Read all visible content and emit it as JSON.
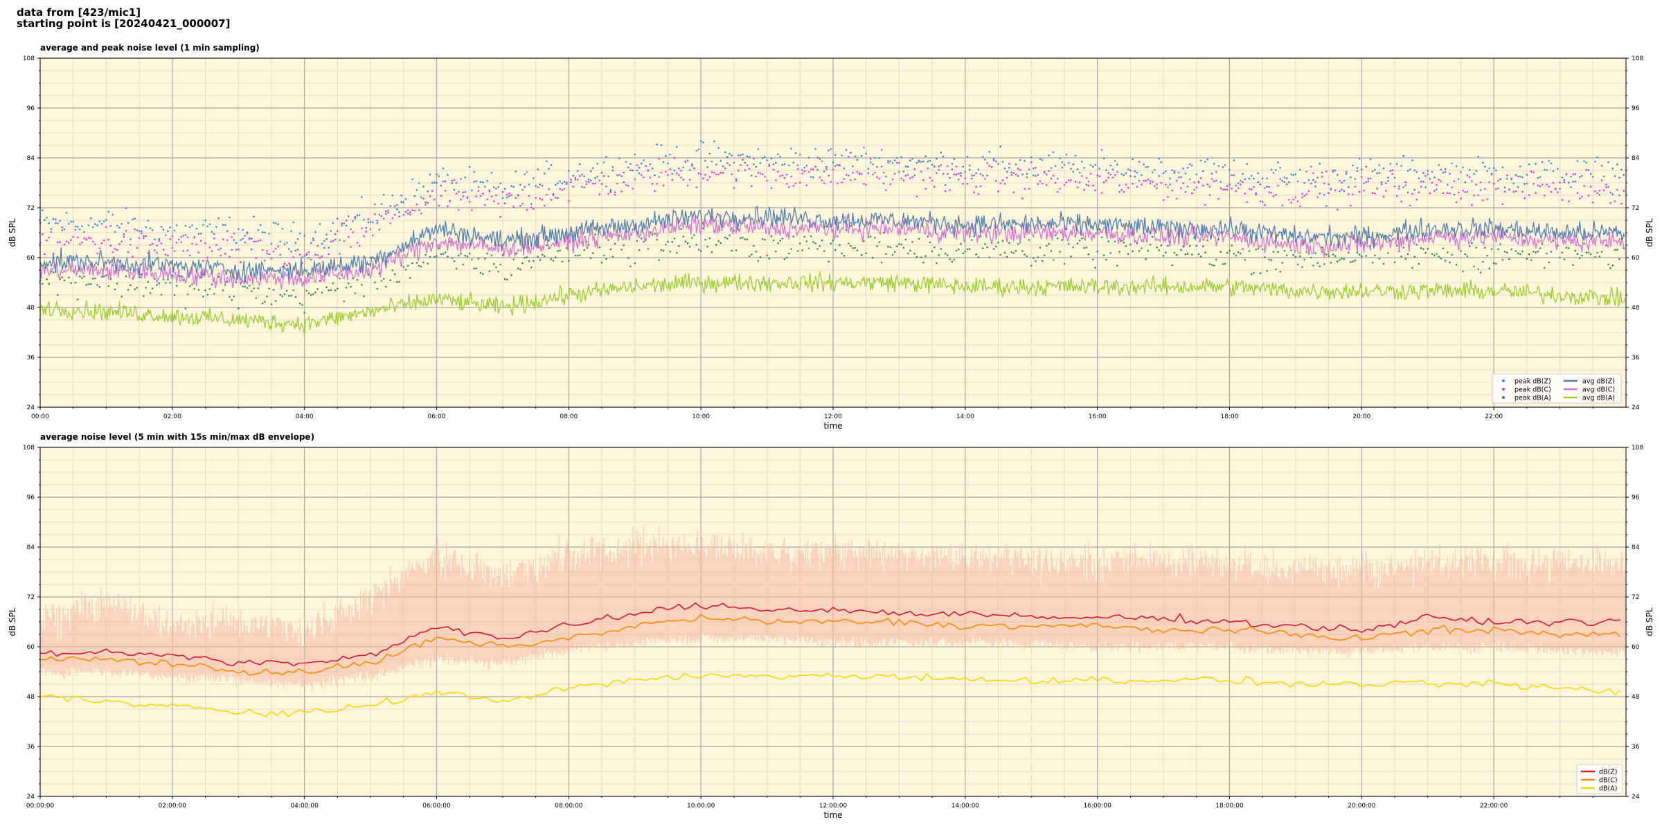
{
  "header": {
    "line1": "data from [423/mic1]",
    "line2": "starting point is [20240421_000007]"
  },
  "colors": {
    "plot_bg": "#fff7dc",
    "grid_major": "#a8a8a8",
    "grid_minor": "#e2dac8",
    "peak_z": "#2b8ccf",
    "peak_c": "#ee33dd",
    "peak_a": "#2a8a5a",
    "avg_z": "#4f7fb0",
    "avg_c": "#d773d3",
    "avg_a": "#9acd32",
    "dbz": "#dc143c",
    "dbc": "#ff8c00",
    "dba": "#ffd700",
    "envelope": "#f5b7a2"
  },
  "chart_data": [
    {
      "type": "line",
      "title": "average and peak noise level (1 min sampling)",
      "xlabel": "time",
      "ylabel": "dB SPL",
      "xlim": [
        0,
        24
      ],
      "ylim": [
        24,
        108
      ],
      "yticks": [
        24,
        36,
        48,
        60,
        72,
        84,
        96,
        108
      ],
      "xticks": [
        "00:00",
        "02:00",
        "04:00",
        "06:00",
        "08:00",
        "10:00",
        "12:00",
        "14:00",
        "16:00",
        "18:00",
        "20:00",
        "22:00"
      ],
      "grid": true,
      "legend_position": "bottom-right",
      "legend": [
        "peak dB(Z)",
        "peak dB(C)",
        "peak dB(A)",
        "avg dB(Z)",
        "avg dB(C)",
        "avg dB(A)"
      ],
      "x": [
        0,
        1,
        2,
        3,
        4,
        5,
        6,
        7,
        8,
        9,
        10,
        11,
        12,
        13,
        14,
        15,
        16,
        17,
        18,
        19,
        20,
        21,
        22,
        23,
        24
      ],
      "series": [
        {
          "name": "peak dB(Z)",
          "style": "scatter",
          "values": [
            68,
            68,
            66,
            66,
            64,
            70,
            78,
            76,
            80,
            82,
            84,
            83,
            83,
            83,
            82,
            82,
            81,
            81,
            80,
            79,
            80,
            80,
            80,
            80,
            80
          ]
        },
        {
          "name": "peak dB(C)",
          "style": "scatter",
          "values": [
            64,
            64,
            62,
            62,
            60,
            67,
            75,
            73,
            77,
            79,
            81,
            80,
            80,
            80,
            79,
            79,
            78,
            78,
            77,
            76,
            77,
            77,
            77,
            77,
            77
          ]
        },
        {
          "name": "peak dB(A)",
          "style": "scatter",
          "values": [
            55,
            55,
            53,
            52,
            51,
            55,
            60,
            58,
            62,
            63,
            64,
            63,
            63,
            63,
            62,
            62,
            62,
            62,
            61,
            60,
            61,
            61,
            61,
            61,
            61
          ]
        },
        {
          "name": "avg dB(Z)",
          "style": "line",
          "values": [
            59,
            59,
            58,
            57,
            57,
            59,
            67,
            64,
            66,
            68,
            70,
            70,
            69,
            69,
            68,
            68,
            68,
            67,
            67,
            65,
            65,
            67,
            67,
            66,
            66
          ]
        },
        {
          "name": "avg dB(C)",
          "style": "line",
          "values": [
            57,
            57,
            56,
            55,
            55,
            57,
            64,
            62,
            64,
            66,
            68,
            67,
            67,
            67,
            66,
            66,
            66,
            65,
            65,
            63,
            63,
            65,
            65,
            64,
            64
          ]
        },
        {
          "name": "avg dB(A)",
          "style": "line",
          "values": [
            48,
            47,
            46,
            45,
            44,
            47,
            50,
            48,
            51,
            53,
            54,
            54,
            54,
            54,
            53,
            53,
            53,
            53,
            53,
            52,
            52,
            52,
            52,
            51,
            50
          ]
        }
      ]
    },
    {
      "type": "line",
      "title": "average noise level (5 min with 15s min/max dB envelope)",
      "xlabel": "time",
      "ylabel": "dB SPL",
      "xlim": [
        0,
        24
      ],
      "ylim": [
        24,
        108
      ],
      "yticks": [
        24,
        36,
        48,
        60,
        72,
        84,
        96,
        108
      ],
      "xticks": [
        "00:00:00",
        "02:00:00",
        "04:00:00",
        "06:00:00",
        "08:00:00",
        "10:00:00",
        "12:00:00",
        "14:00:00",
        "16:00:00",
        "18:00:00",
        "20:00:00",
        "22:00:00"
      ],
      "grid": true,
      "legend_position": "bottom-right",
      "legend": [
        "dB(Z)",
        "dB(C)",
        "dB(A)"
      ],
      "x": [
        0,
        1,
        2,
        3,
        4,
        5,
        6,
        7,
        8,
        9,
        10,
        11,
        12,
        13,
        14,
        15,
        16,
        17,
        18,
        19,
        20,
        21,
        22,
        23,
        24
      ],
      "envelope": {
        "min": [
          54,
          54,
          53,
          52,
          51,
          53,
          57,
          56,
          59,
          61,
          62,
          62,
          61,
          61,
          61,
          61,
          60,
          60,
          60,
          59,
          59,
          60,
          60,
          59,
          59
        ],
        "max": [
          68,
          72,
          67,
          68,
          65,
          74,
          84,
          78,
          84,
          86,
          86,
          84,
          84,
          84,
          83,
          83,
          82,
          82,
          82,
          80,
          80,
          82,
          82,
          82,
          82
        ]
      },
      "series": [
        {
          "name": "dB(Z)",
          "values": [
            58,
            59,
            58,
            56,
            56,
            58,
            65,
            62,
            65,
            68,
            70,
            69,
            69,
            68,
            68,
            67,
            67,
            67,
            66,
            65,
            64,
            67,
            66,
            66,
            66
          ]
        },
        {
          "name": "dB(C)",
          "values": [
            57,
            57,
            56,
            54,
            54,
            56,
            62,
            60,
            62,
            65,
            67,
            66,
            66,
            66,
            65,
            65,
            65,
            64,
            64,
            63,
            62,
            64,
            64,
            63,
            63
          ]
        },
        {
          "name": "dB(A)",
          "values": [
            48,
            47,
            46,
            44,
            44,
            46,
            49,
            47,
            50,
            52,
            53,
            53,
            53,
            53,
            52,
            52,
            52,
            52,
            52,
            51,
            51,
            51,
            51,
            50,
            49
          ]
        }
      ]
    }
  ]
}
